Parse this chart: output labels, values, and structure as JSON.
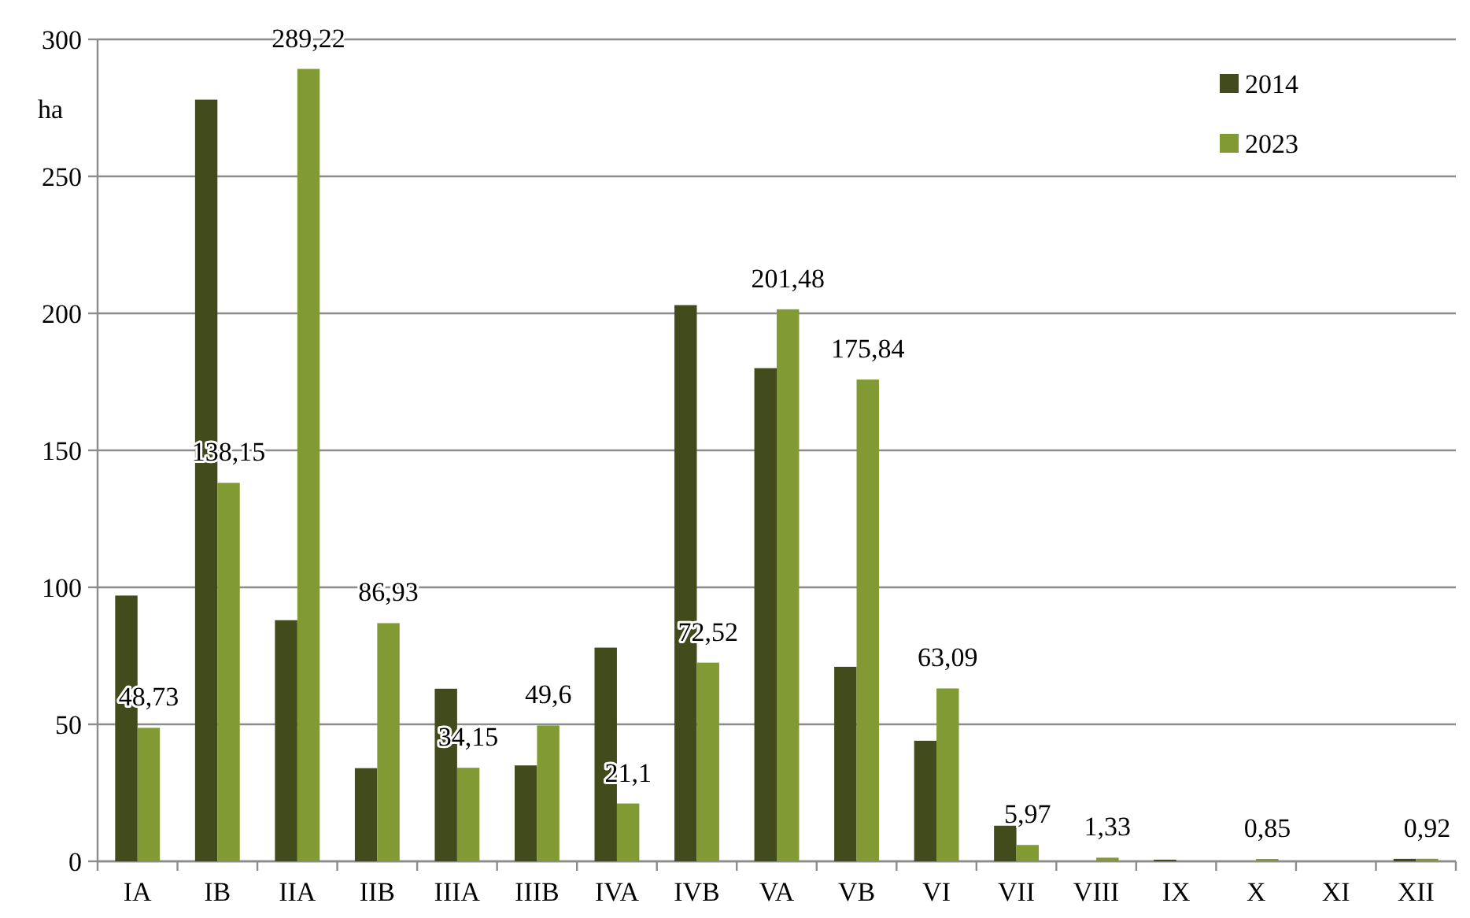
{
  "chart_data": {
    "type": "bar",
    "ylabel": "ha",
    "categories": [
      "IA",
      "IB",
      "IIA",
      "IIB",
      "IIIA",
      "IIIB",
      "IVA",
      "IVB",
      "VA",
      "VB",
      "VI",
      "VII",
      "VIII",
      "IX",
      "X",
      "XI",
      "XII"
    ],
    "series": [
      {
        "name": "2014",
        "color": "#414b1b",
        "values": [
          97,
          278,
          88,
          34,
          63,
          35,
          78,
          203,
          180,
          71,
          44,
          13,
          null,
          0.6,
          null,
          null,
          0.9
        ]
      },
      {
        "name": "2023",
        "color": "#829a34",
        "values": [
          48.73,
          138.15,
          289.22,
          86.93,
          34.15,
          49.6,
          21.1,
          72.52,
          201.48,
          175.84,
          63.09,
          5.97,
          1.33,
          null,
          0.85,
          null,
          0.92
        ],
        "value_labels": [
          "48,73",
          "138,15",
          "289,22",
          "86,93",
          "34,15",
          "49,6",
          "21,1",
          "72,52",
          "201,48",
          "175,84",
          "63,09",
          "5,97",
          "1,33",
          null,
          "0,85",
          null,
          "0,92"
        ]
      }
    ],
    "ylim": [
      0,
      300
    ],
    "yticks": [
      0,
      50,
      100,
      150,
      200,
      250,
      300
    ],
    "grid": "y",
    "legend": "top right"
  }
}
